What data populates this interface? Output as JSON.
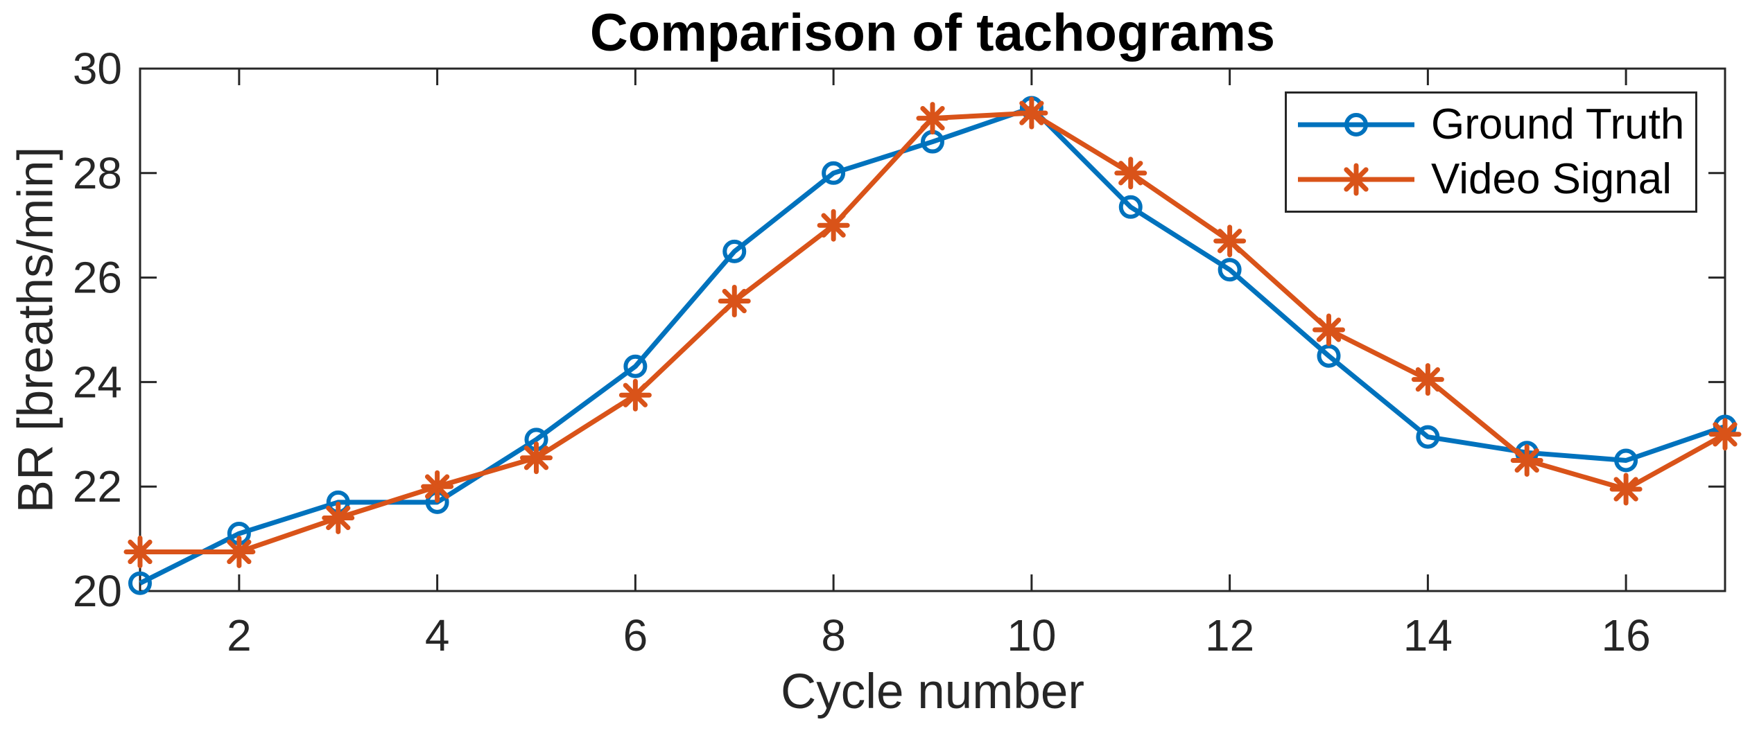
{
  "chart_data": {
    "type": "line",
    "title": "Comparison of tachograms",
    "xlabel": "Cycle number",
    "ylabel": "BR [breaths/min]",
    "x": [
      1,
      2,
      3,
      4,
      5,
      6,
      7,
      8,
      9,
      10,
      11,
      12,
      13,
      14,
      15,
      16,
      17
    ],
    "series": [
      {
        "name": "Ground Truth",
        "color": "#0072BD",
        "marker": "circle",
        "values": [
          20.15,
          21.1,
          21.7,
          21.7,
          22.9,
          24.3,
          26.5,
          28.0,
          28.6,
          29.25,
          27.35,
          26.15,
          24.5,
          22.95,
          22.65,
          22.5,
          23.15
        ]
      },
      {
        "name": "Video Signal",
        "color": "#D95319",
        "marker": "asterisk",
        "values": [
          20.75,
          20.75,
          21.4,
          22.0,
          22.55,
          23.75,
          25.55,
          27.0,
          29.05,
          29.15,
          28.0,
          26.7,
          25.0,
          24.05,
          22.5,
          21.95,
          23.0
        ]
      }
    ],
    "xlim": [
      1,
      17
    ],
    "ylim": [
      20,
      30
    ],
    "xticks": [
      2,
      4,
      6,
      8,
      10,
      12,
      14,
      16
    ],
    "yticks": [
      20,
      22,
      24,
      26,
      28,
      30
    ],
    "grid": false,
    "legend_position": "top-right",
    "axis_color": "#262626",
    "background_color": "#ffffff"
  }
}
